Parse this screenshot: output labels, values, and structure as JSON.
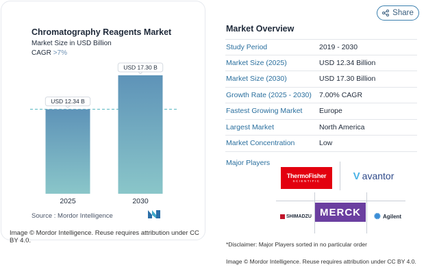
{
  "share": {
    "label": "Share",
    "icon": "share-icon"
  },
  "card": {
    "title": "Chromatography Reagents Market",
    "subtitle": "Market Size in USD Billion",
    "cagr_label": "CAGR",
    "cagr_value": ">7%",
    "source_label": "Source :",
    "source_value": "Mordor Intelligence",
    "footer": "Image © Mordor Intelligence. Reuse requires attribution under CC BY 4.0."
  },
  "chart_data": {
    "type": "bar",
    "categories": [
      "2025",
      "2030"
    ],
    "values": [
      12.34,
      17.3
    ],
    "value_labels": [
      "USD 12.34 B",
      "USD 17.30 B"
    ],
    "title": "Chromatography Reagents Market",
    "ylabel": "Market Size in USD Billion",
    "ylim": [
      0,
      18.5
    ],
    "reference_line_value": 12.34,
    "colors": {
      "bar_top": "#5e93b8",
      "bar_bottom": "#8ac6c9",
      "reference_line": "#4fb3bf"
    }
  },
  "overview": {
    "title": "Market Overview",
    "rows": [
      {
        "key": "Study Period",
        "value": "2019 - 2030"
      },
      {
        "key": "Market Size (2025)",
        "value": "USD 12.34 Billion"
      },
      {
        "key": "Market Size (2030)",
        "value": "USD 17.30 Billion"
      },
      {
        "key": "Growth Rate (2025 - 2030)",
        "value": "7.00% CAGR"
      },
      {
        "key": "Fastest Growing Market",
        "value": "Europe"
      },
      {
        "key": "Largest Market",
        "value": "North America"
      },
      {
        "key": "Market Concentration",
        "value": "Low"
      }
    ],
    "players_label": "Major Players",
    "players": {
      "thermo_line1": "ThermoFisher",
      "thermo_line2": "SCIENTIFIC",
      "avantor": "avantor",
      "avantor_mark": "V",
      "merck": "MERCK",
      "shimadzu": "SHIMADZU",
      "agilent": "Agilent"
    }
  },
  "disclaimer": "*Disclaimer: Major Players sorted in no particular order",
  "attribution": "Image © Mordor Intelligence. Reuse requires attribution under CC BY 4.0."
}
